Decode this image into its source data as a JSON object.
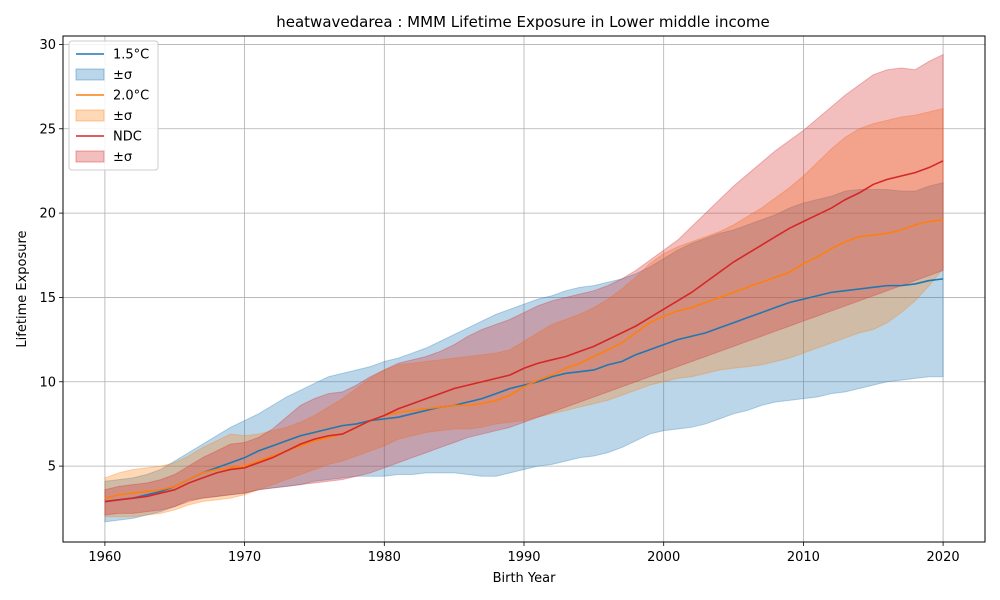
{
  "chart_data": {
    "type": "line",
    "title": "heatwavedarea : MMM Lifetime Exposure in Lower middle income",
    "xlabel": "Birth Year",
    "ylabel": "Lifetime Exposure",
    "xlim": [
      1957,
      2023
    ],
    "ylim": [
      0.5,
      30.5
    ],
    "xticks": [
      1960,
      1970,
      1980,
      1990,
      2000,
      2010,
      2020
    ],
    "yticks": [
      5,
      10,
      15,
      20,
      25,
      30
    ],
    "grid": true,
    "legend_position": "top-left",
    "x": [
      1960,
      1961,
      1962,
      1963,
      1964,
      1965,
      1966,
      1967,
      1968,
      1969,
      1970,
      1971,
      1972,
      1973,
      1974,
      1975,
      1976,
      1977,
      1978,
      1979,
      1980,
      1981,
      1982,
      1983,
      1984,
      1985,
      1986,
      1987,
      1988,
      1989,
      1990,
      1991,
      1992,
      1993,
      1994,
      1995,
      1996,
      1997,
      1998,
      1999,
      2000,
      2001,
      2002,
      2003,
      2004,
      2005,
      2006,
      2007,
      2008,
      2009,
      2010,
      2011,
      2012,
      2013,
      2014,
      2015,
      2016,
      2017,
      2018,
      2019,
      2020
    ],
    "series": [
      {
        "name": "1.5°C",
        "band_label": "±σ",
        "color": "#1f77b4",
        "mean": [
          2.9,
          3.0,
          3.1,
          3.3,
          3.5,
          3.8,
          4.2,
          4.6,
          4.9,
          5.2,
          5.5,
          5.9,
          6.2,
          6.5,
          6.8,
          7.0,
          7.2,
          7.4,
          7.5,
          7.7,
          7.8,
          7.9,
          8.1,
          8.3,
          8.5,
          8.6,
          8.8,
          9.0,
          9.3,
          9.6,
          9.8,
          10.0,
          10.3,
          10.5,
          10.6,
          10.7,
          11.0,
          11.2,
          11.6,
          11.9,
          12.2,
          12.5,
          12.7,
          12.9,
          13.2,
          13.5,
          13.8,
          14.1,
          14.4,
          14.7,
          14.9,
          15.1,
          15.3,
          15.4,
          15.5,
          15.6,
          15.7,
          15.7,
          15.8,
          16.0,
          16.1
        ],
        "upper": [
          4.1,
          4.2,
          4.3,
          4.5,
          4.8,
          5.3,
          5.8,
          6.3,
          6.8,
          7.3,
          7.7,
          8.1,
          8.6,
          9.1,
          9.5,
          9.9,
          10.3,
          10.5,
          10.7,
          10.9,
          11.2,
          11.4,
          11.7,
          12.0,
          12.4,
          12.8,
          13.2,
          13.6,
          14.0,
          14.3,
          14.6,
          14.9,
          15.1,
          15.4,
          15.6,
          15.7,
          15.9,
          16.1,
          16.4,
          16.8,
          17.3,
          17.8,
          18.2,
          18.5,
          18.8,
          19.0,
          19.3,
          19.6,
          19.9,
          20.3,
          20.6,
          20.8,
          21.0,
          21.3,
          21.4,
          21.4,
          21.4,
          21.3,
          21.3,
          21.6,
          21.8
        ],
        "lower": [
          1.7,
          1.8,
          1.9,
          2.1,
          2.3,
          2.6,
          3.0,
          3.1,
          3.2,
          3.3,
          3.4,
          3.6,
          3.7,
          3.8,
          3.9,
          4.1,
          4.2,
          4.3,
          4.4,
          4.4,
          4.4,
          4.5,
          4.5,
          4.6,
          4.6,
          4.6,
          4.5,
          4.4,
          4.4,
          4.6,
          4.8,
          5.0,
          5.1,
          5.3,
          5.5,
          5.6,
          5.8,
          6.1,
          6.5,
          6.9,
          7.1,
          7.2,
          7.3,
          7.5,
          7.8,
          8.1,
          8.3,
          8.6,
          8.8,
          8.9,
          9.0,
          9.1,
          9.3,
          9.4,
          9.6,
          9.8,
          10.0,
          10.1,
          10.2,
          10.3,
          10.3
        ]
      },
      {
        "name": "2.0°C",
        "band_label": "±σ",
        "color": "#ff7f0e",
        "mean": [
          3.1,
          3.3,
          3.4,
          3.5,
          3.6,
          3.8,
          4.2,
          4.6,
          4.8,
          4.9,
          5.0,
          5.3,
          5.6,
          5.9,
          6.2,
          6.5,
          6.7,
          6.9,
          7.3,
          7.7,
          8.0,
          8.2,
          8.3,
          8.4,
          8.5,
          8.6,
          8.6,
          8.7,
          8.9,
          9.2,
          9.7,
          10.1,
          10.4,
          10.8,
          11.1,
          11.5,
          11.9,
          12.3,
          12.9,
          13.5,
          13.9,
          14.2,
          14.4,
          14.7,
          15.0,
          15.3,
          15.6,
          15.9,
          16.2,
          16.5,
          17.0,
          17.4,
          17.9,
          18.3,
          18.6,
          18.7,
          18.8,
          19.0,
          19.3,
          19.5,
          19.6
        ],
        "upper": [
          4.3,
          4.6,
          4.8,
          4.9,
          5.0,
          5.2,
          5.6,
          6.1,
          6.5,
          6.9,
          6.8,
          6.9,
          7.1,
          7.3,
          7.6,
          8.0,
          8.5,
          9.0,
          9.6,
          10.2,
          10.7,
          11.0,
          11.1,
          11.2,
          11.3,
          11.4,
          11.5,
          11.6,
          11.7,
          11.9,
          12.4,
          12.9,
          13.4,
          13.7,
          14.0,
          14.4,
          14.9,
          15.5,
          16.2,
          17.0,
          17.6,
          18.0,
          18.3,
          18.6,
          18.9,
          19.3,
          19.8,
          20.3,
          20.9,
          21.5,
          22.2,
          23.0,
          23.8,
          24.5,
          25.0,
          25.3,
          25.5,
          25.7,
          25.8,
          26.0,
          26.2
        ],
        "lower": [
          2.0,
          2.0,
          2.0,
          2.1,
          2.2,
          2.4,
          2.7,
          2.9,
          3.0,
          3.1,
          3.3,
          3.6,
          3.9,
          4.2,
          4.5,
          4.8,
          5.1,
          5.3,
          5.6,
          5.9,
          6.2,
          6.6,
          6.8,
          7.0,
          7.1,
          7.2,
          7.2,
          7.3,
          7.5,
          7.6,
          7.7,
          7.9,
          8.1,
          8.3,
          8.5,
          8.7,
          8.9,
          9.2,
          9.5,
          9.8,
          10.0,
          10.2,
          10.3,
          10.5,
          10.7,
          10.8,
          10.9,
          11.0,
          11.2,
          11.4,
          11.7,
          12.0,
          12.3,
          12.6,
          12.9,
          13.1,
          13.5,
          14.1,
          14.8,
          15.7,
          16.7
        ]
      },
      {
        "name": "NDC",
        "band_label": "±σ",
        "color": "#d62728",
        "mean": [
          2.9,
          3.0,
          3.1,
          3.2,
          3.4,
          3.6,
          4.0,
          4.3,
          4.6,
          4.8,
          4.9,
          5.2,
          5.5,
          5.9,
          6.3,
          6.6,
          6.8,
          6.9,
          7.3,
          7.7,
          8.0,
          8.4,
          8.7,
          9.0,
          9.3,
          9.6,
          9.8,
          10.0,
          10.2,
          10.4,
          10.8,
          11.1,
          11.3,
          11.5,
          11.8,
          12.1,
          12.5,
          12.9,
          13.3,
          13.8,
          14.3,
          14.8,
          15.3,
          15.9,
          16.5,
          17.1,
          17.6,
          18.1,
          18.6,
          19.1,
          19.5,
          19.9,
          20.3,
          20.8,
          21.2,
          21.7,
          22.0,
          22.2,
          22.4,
          22.7,
          23.1
        ],
        "upper": [
          3.6,
          3.8,
          3.9,
          4.0,
          4.2,
          4.5,
          5.0,
          5.5,
          5.9,
          6.3,
          6.4,
          6.7,
          7.2,
          7.9,
          8.6,
          9.0,
          9.3,
          9.4,
          9.8,
          10.3,
          10.7,
          11.1,
          11.3,
          11.5,
          11.8,
          12.2,
          12.7,
          13.1,
          13.4,
          13.7,
          14.1,
          14.5,
          14.8,
          15.0,
          15.2,
          15.4,
          15.7,
          16.1,
          16.6,
          17.2,
          17.8,
          18.4,
          19.2,
          20.0,
          20.8,
          21.6,
          22.3,
          23.0,
          23.7,
          24.3,
          24.9,
          25.6,
          26.3,
          27.0,
          27.6,
          28.2,
          28.5,
          28.6,
          28.5,
          29.0,
          29.4
        ],
        "lower": [
          2.1,
          2.2,
          2.2,
          2.3,
          2.4,
          2.6,
          2.9,
          3.1,
          3.2,
          3.3,
          3.4,
          3.6,
          3.7,
          3.8,
          3.9,
          4.0,
          4.1,
          4.2,
          4.4,
          4.6,
          4.9,
          5.2,
          5.5,
          5.8,
          6.1,
          6.4,
          6.7,
          6.9,
          7.1,
          7.3,
          7.6,
          7.9,
          8.2,
          8.5,
          8.8,
          9.1,
          9.4,
          9.7,
          10.0,
          10.3,
          10.6,
          10.9,
          11.2,
          11.5,
          11.8,
          12.1,
          12.4,
          12.7,
          13.0,
          13.3,
          13.6,
          13.9,
          14.2,
          14.5,
          14.8,
          15.1,
          15.4,
          15.7,
          16.0,
          16.3,
          16.6
        ]
      }
    ]
  }
}
